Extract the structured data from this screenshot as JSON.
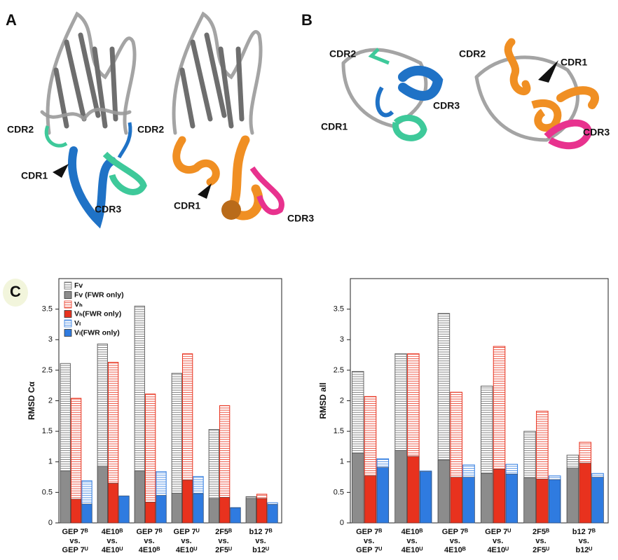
{
  "figure": {
    "panel_labels": [
      "A",
      "B",
      "C"
    ],
    "structure_labels": [
      "CDR2",
      "CDR2",
      "CDR1",
      "CDR3",
      "CDR1",
      "CDR3",
      "CDR2",
      "CDR1",
      "CDR3",
      "CDR2",
      "CDR1",
      "CDR3"
    ]
  },
  "chart_data": [
    {
      "type": "bar",
      "y_label": "RMSD Cα",
      "ylim": [
        0,
        4
      ],
      "yticks": [
        0,
        0.5,
        1,
        1.5,
        2,
        2.5,
        3,
        3.5
      ],
      "legend": "upper left",
      "categories": [
        "GEP 7ᴮ\nvs.\nGEP 7ᵁ",
        "4E10ᴮ\nvs.\n4E10ᵁ",
        "GEP 7ᴮ\nvs.\n4E10ᴮ",
        "GEP 7ᵁ\nvs.\n4E10ᵁ",
        "2F5ᴮ\nvs.\n2F5ᵁ",
        "b12 7ᴮ\nvs.\nb12ᵁ"
      ],
      "series": [
        {
          "name": "Fv",
          "color": "#666666",
          "hatched": true,
          "values": [
            2.61,
            2.93,
            3.55,
            2.45,
            1.53,
            0.43
          ]
        },
        {
          "name": "Fv (FWR only)",
          "color": "#8c8c8c",
          "hatched": false,
          "values": [
            0.85,
            0.93,
            0.85,
            0.49,
            0.4,
            0.4
          ]
        },
        {
          "name": "Vₕ",
          "color": "#e8321e",
          "hatched": true,
          "values": [
            2.04,
            2.63,
            2.11,
            2.77,
            1.92,
            0.47
          ]
        },
        {
          "name": "Vₕ(FWR only)",
          "color": "#e8321e",
          "hatched": false,
          "values": [
            0.39,
            0.65,
            0.34,
            0.7,
            0.42,
            0.4
          ]
        },
        {
          "name": "Vₗ",
          "color": "#2f7be0",
          "hatched": true,
          "values": [
            0.69,
            0.44,
            0.84,
            0.76,
            0.25,
            0.33
          ]
        },
        {
          "name": "Vₗ(FWR only)",
          "color": "#2f7be0",
          "hatched": false,
          "values": [
            0.31,
            0.44,
            0.45,
            0.48,
            0.25,
            0.3
          ]
        }
      ]
    },
    {
      "type": "bar",
      "y_label": "RMSD all",
      "ylim": [
        0,
        4
      ],
      "yticks": [
        0,
        0.5,
        1,
        1.5,
        2,
        2.5,
        3,
        3.5
      ],
      "categories": [
        "GEP 7ᴮ\nvs.\nGEP 7ᵁ",
        "4E10ᴮ\nvs.\n4E10ᵁ",
        "GEP 7ᴮ\nvs.\n4E10ᴮ",
        "GEP 7ᵁ\nvs.\n4E10ᵁ",
        "2F5ᴮ\nvs.\n2F5ᵁ",
        "b12 7ᴮ\nvs.\nb12ᵁ"
      ],
      "series": [
        {
          "color": "#666666",
          "hatched": true,
          "values": [
            2.48,
            2.77,
            3.43,
            2.24,
            1.5,
            1.11
          ]
        },
        {
          "color": "#8c8c8c",
          "hatched": false,
          "values": [
            1.14,
            1.19,
            1.03,
            0.81,
            0.74,
            0.9
          ]
        },
        {
          "color": "#e8321e",
          "hatched": true,
          "values": [
            2.07,
            2.77,
            2.14,
            2.89,
            1.83,
            1.32
          ]
        },
        {
          "color": "#e8321e",
          "hatched": false,
          "values": [
            0.77,
            1.09,
            0.75,
            0.88,
            0.72,
            0.98
          ]
        },
        {
          "color": "#2f7be0",
          "hatched": true,
          "values": [
            1.05,
            0.85,
            0.95,
            0.96,
            0.77,
            0.81
          ]
        },
        {
          "color": "#2f7be0",
          "hatched": false,
          "values": [
            0.91,
            0.84,
            0.75,
            0.8,
            0.71,
            0.75
          ]
        }
      ]
    }
  ]
}
